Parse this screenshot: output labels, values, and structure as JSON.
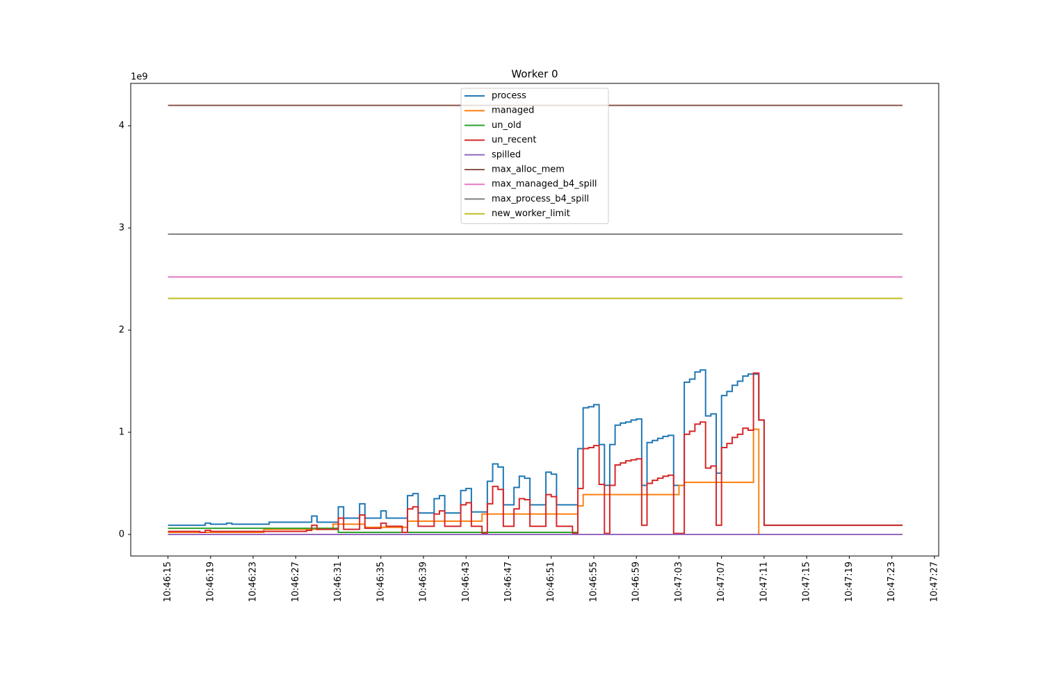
{
  "chart_data": {
    "type": "line",
    "title": "Worker 0",
    "y_offset_label": "1e9",
    "drawstyle": "steps-post",
    "xlim": [
      -3.5,
      72.4
    ],
    "ylim": [
      -0.211,
      4.415
    ],
    "xticks": [
      {
        "value": 0,
        "label": "10:46:15"
      },
      {
        "value": 4,
        "label": "10:46:19"
      },
      {
        "value": 8,
        "label": "10:46:23"
      },
      {
        "value": 12,
        "label": "10:46:27"
      },
      {
        "value": 16,
        "label": "10:46:31"
      },
      {
        "value": 20,
        "label": "10:46:35"
      },
      {
        "value": 24,
        "label": "10:46:39"
      },
      {
        "value": 28,
        "label": "10:46:43"
      },
      {
        "value": 32,
        "label": "10:46:47"
      },
      {
        "value": 36,
        "label": "10:46:51"
      },
      {
        "value": 40,
        "label": "10:46:55"
      },
      {
        "value": 44,
        "label": "10:46:59"
      },
      {
        "value": 48,
        "label": "10:47:03"
      },
      {
        "value": 52,
        "label": "10:47:07"
      },
      {
        "value": 56,
        "label": "10:47:11"
      },
      {
        "value": 60,
        "label": "10:47:15"
      },
      {
        "value": 64,
        "label": "10:47:19"
      },
      {
        "value": 68,
        "label": "10:47:23"
      },
      {
        "value": 72,
        "label": "10:47:27"
      }
    ],
    "yticks": [
      0,
      1,
      2,
      3,
      4
    ],
    "legend": "upper center",
    "series": [
      {
        "name": "process",
        "color": "#1f77b4",
        "x": [
          0,
          3.5,
          4,
          5.5,
          6,
          9.5,
          13.5,
          14,
          16,
          16.5,
          18,
          18.5,
          20,
          20.5,
          22.5,
          23,
          23.5,
          25,
          25.5,
          26,
          27.5,
          28,
          28.5,
          30,
          30.5,
          31,
          31.5,
          32.5,
          33,
          33.5,
          34,
          35.5,
          36,
          36.5,
          38.5,
          39,
          39.5,
          40,
          40.5,
          41,
          41.5,
          42,
          42.5,
          43,
          43.5,
          44,
          44.5,
          45,
          45.5,
          46,
          46.5,
          47,
          47.5,
          48.5,
          49,
          49.5,
          50,
          50.5,
          51,
          51.5,
          52,
          52.5,
          53,
          53.5,
          54,
          54.5,
          55.5,
          56,
          69
        ],
        "values": [
          0.09,
          0.11,
          0.1,
          0.11,
          0.1,
          0.12,
          0.18,
          0.12,
          0.27,
          0.16,
          0.3,
          0.16,
          0.23,
          0.16,
          0.38,
          0.4,
          0.21,
          0.35,
          0.38,
          0.21,
          0.43,
          0.45,
          0.22,
          0.52,
          0.69,
          0.66,
          0.29,
          0.46,
          0.57,
          0.55,
          0.29,
          0.61,
          0.59,
          0.29,
          0.84,
          1.24,
          1.25,
          1.27,
          0.88,
          0.48,
          0.88,
          1.07,
          1.09,
          1.1,
          1.12,
          1.13,
          0.48,
          0.9,
          0.92,
          0.94,
          0.96,
          0.97,
          0.48,
          1.49,
          1.52,
          1.59,
          1.61,
          1.16,
          1.18,
          0.6,
          1.36,
          1.4,
          1.46,
          1.5,
          1.55,
          1.57,
          1.12,
          0.09,
          0.09
        ]
      },
      {
        "name": "managed",
        "color": "#ff7f0e",
        "x": [
          0,
          9,
          15.5,
          18.5,
          22.5,
          29.5,
          38.5,
          39,
          48,
          48.5,
          55,
          55.5,
          69
        ],
        "values": [
          0.02,
          0.05,
          0.1,
          0.07,
          0.13,
          0.2,
          0.28,
          0.39,
          0.48,
          0.51,
          1.03,
          0,
          0
        ]
      },
      {
        "name": "un_old",
        "color": "#2ca02c",
        "x": [
          0,
          16,
          38.5,
          69
        ],
        "values": [
          0.06,
          0.02,
          0,
          0
        ]
      },
      {
        "name": "un_recent",
        "color": "#d62728",
        "x": [
          0,
          3,
          3.5,
          4,
          13,
          13.5,
          14,
          16,
          16.5,
          18,
          18.5,
          20,
          20.5,
          22,
          22.5,
          23,
          23.5,
          25,
          25.5,
          26,
          27.5,
          28,
          28.5,
          29.5,
          30,
          30.5,
          31,
          31.5,
          32.5,
          33,
          33.5,
          34,
          35.5,
          36,
          36.5,
          38,
          38.5,
          39,
          39.5,
          40,
          40.5,
          41,
          41.5,
          42,
          42.5,
          43,
          43.5,
          44,
          44.5,
          45,
          45.5,
          46,
          46.5,
          47,
          47.5,
          48.5,
          49,
          49.5,
          50,
          50.5,
          51,
          51.5,
          52,
          52.5,
          53,
          53.5,
          54,
          54.5,
          55,
          55.5,
          56,
          69
        ],
        "values": [
          0.03,
          0.02,
          0.04,
          0.03,
          0.04,
          0.09,
          0.05,
          0.16,
          0.05,
          0.19,
          0.06,
          0.11,
          0.08,
          0.02,
          0.25,
          0.27,
          0.08,
          0.2,
          0.23,
          0.08,
          0.29,
          0.31,
          0.08,
          0.01,
          0.3,
          0.47,
          0.44,
          0.08,
          0.25,
          0.35,
          0.34,
          0.08,
          0.39,
          0.37,
          0.08,
          0.01,
          0.45,
          0.84,
          0.85,
          0.87,
          0.49,
          0.01,
          0.48,
          0.68,
          0.7,
          0.72,
          0.73,
          0.74,
          0.09,
          0.5,
          0.53,
          0.55,
          0.57,
          0.58,
          0.01,
          0.98,
          1.01,
          1.08,
          1.1,
          0.65,
          0.67,
          0.09,
          0.85,
          0.89,
          0.95,
          0.98,
          1.04,
          1.02,
          1.58,
          1.12,
          0.09,
          0.09
        ]
      },
      {
        "name": "spilled",
        "color": "#9467bd",
        "x": [
          0,
          69
        ],
        "values": [
          0,
          0
        ]
      },
      {
        "name": "max_alloc_mem",
        "color": "#8c564b",
        "x": [
          0,
          69
        ],
        "values": [
          4.2,
          4.2
        ]
      },
      {
        "name": "max_managed_b4_spill",
        "color": "#e377c2",
        "x": [
          0,
          69
        ],
        "values": [
          2.52,
          2.52
        ]
      },
      {
        "name": "max_process_b4_spill",
        "color": "#7f7f7f",
        "x": [
          0,
          69
        ],
        "values": [
          2.94,
          2.94
        ]
      },
      {
        "name": "new_worker_limit",
        "color": "#bcbd22",
        "x": [
          0,
          69
        ],
        "values": [
          2.31,
          2.31
        ]
      }
    ]
  }
}
